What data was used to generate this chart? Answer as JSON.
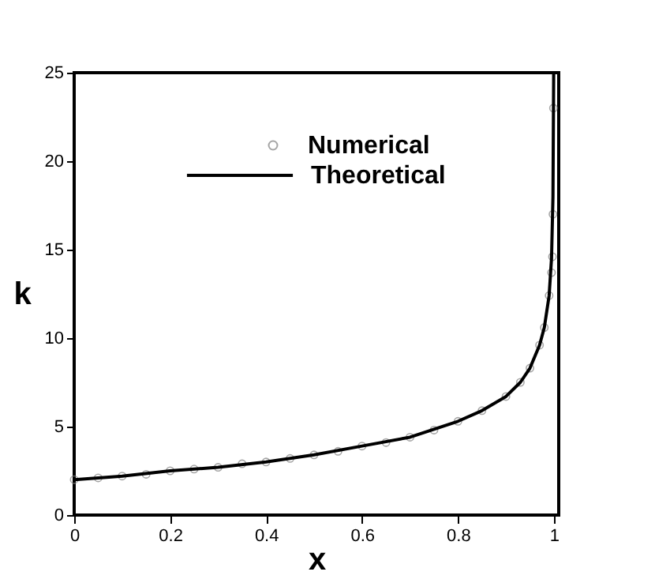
{
  "chart_data": {
    "type": "line",
    "xlabel": "x",
    "ylabel": "k",
    "xlim": [
      0,
      1.01
    ],
    "ylim": [
      0,
      25
    ],
    "xticks": [
      0,
      0.2,
      0.4,
      0.6,
      0.8,
      1
    ],
    "yticks": [
      0,
      5,
      10,
      15,
      20,
      25
    ],
    "grid": false,
    "legend": "top",
    "series": [
      {
        "name": "Numerical",
        "type": "scatter",
        "marker": "circle",
        "color": "#808080",
        "x": [
          0,
          0.05,
          0.1,
          0.15,
          0.2,
          0.25,
          0.3,
          0.35,
          0.4,
          0.45,
          0.5,
          0.55,
          0.6,
          0.65,
          0.7,
          0.75,
          0.8,
          0.85,
          0.9,
          0.93,
          0.95,
          0.97,
          0.98,
          0.99,
          0.995,
          0.997,
          0.998,
          0.999
        ],
        "values": [
          2.0,
          2.1,
          2.2,
          2.3,
          2.5,
          2.6,
          2.7,
          2.9,
          3.0,
          3.2,
          3.4,
          3.6,
          3.9,
          4.1,
          4.4,
          4.8,
          5.3,
          5.9,
          6.7,
          7.5,
          8.3,
          9.6,
          10.6,
          12.4,
          13.7,
          14.6,
          17,
          23
        ]
      },
      {
        "name": "Theoretical",
        "line_style": "solid",
        "color": "#000000",
        "x": [
          0,
          0.1,
          0.2,
          0.3,
          0.4,
          0.5,
          0.6,
          0.7,
          0.8,
          0.85,
          0.9,
          0.93,
          0.95,
          0.97,
          0.98,
          0.99,
          0.995,
          0.998,
          0.9995
        ],
        "values": [
          2.0,
          2.2,
          2.5,
          2.7,
          3.0,
          3.4,
          3.9,
          4.4,
          5.3,
          5.9,
          6.7,
          7.5,
          8.3,
          9.6,
          10.6,
          12.4,
          14.5,
          18,
          25
        ]
      }
    ]
  }
}
